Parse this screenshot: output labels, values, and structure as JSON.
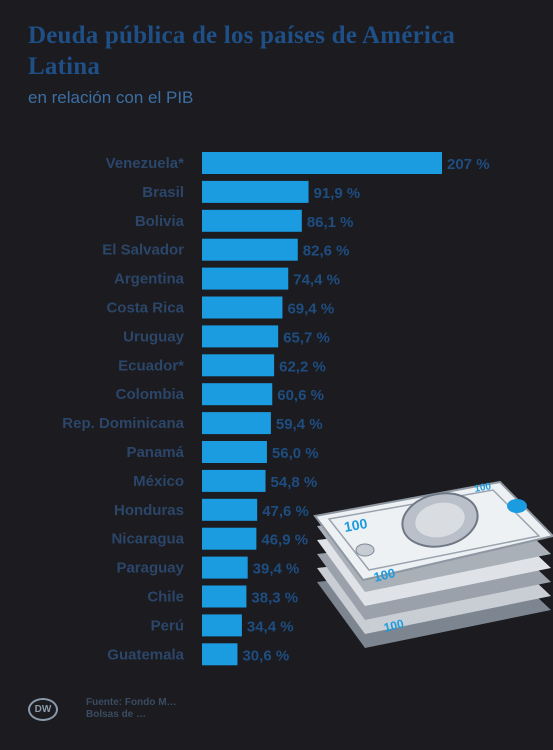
{
  "title": "Deuda pública de los países de América Latina",
  "subtitle": "en relación con el PIB",
  "footer": {
    "logo_text": "DW",
    "source_line1": "Fuente: Fondo M…",
    "source_line2": "Bolsas de …"
  },
  "colors": {
    "background": "#1b1b20",
    "bar": "#1b9be0",
    "country_label": "#2b4669",
    "value_label": "#1e4d80",
    "title": "#1e4f86"
  },
  "illustration": "stack-of-100-dollar-bills",
  "chart_data": {
    "type": "bar",
    "orientation": "horizontal",
    "unit": "%",
    "categories": [
      "Venezuela*",
      "Brasil",
      "Bolivia",
      "El Salvador",
      "Argentina",
      "Costa Rica",
      "Uruguay",
      "Ecuador*",
      "Colombia",
      "Rep. Dominicana",
      "Panamá",
      "México",
      "Honduras",
      "Nicaragua",
      "Paraguay",
      "Chile",
      "Perú",
      "Guatemala"
    ],
    "values": [
      207,
      91.9,
      86.1,
      82.6,
      74.4,
      69.4,
      65.7,
      62.2,
      60.6,
      59.4,
      56.0,
      54.8,
      47.6,
      46.9,
      39.4,
      38.3,
      34.4,
      30.6
    ],
    "value_labels": [
      "207 %",
      "91,9 %",
      "86,1 %",
      "82,6 %",
      "74,4 %",
      "69,4 %",
      "65,7 %",
      "62,2 %",
      "60,6 %",
      "59,4 %",
      "56,0 %",
      "54,8 %",
      "47,6 %",
      "46,9 %",
      "39,4 %",
      "38,3 %",
      "34,4 %",
      "30,6 %"
    ],
    "xlim": [
      0,
      207
    ],
    "grid": false,
    "legend": "none"
  }
}
